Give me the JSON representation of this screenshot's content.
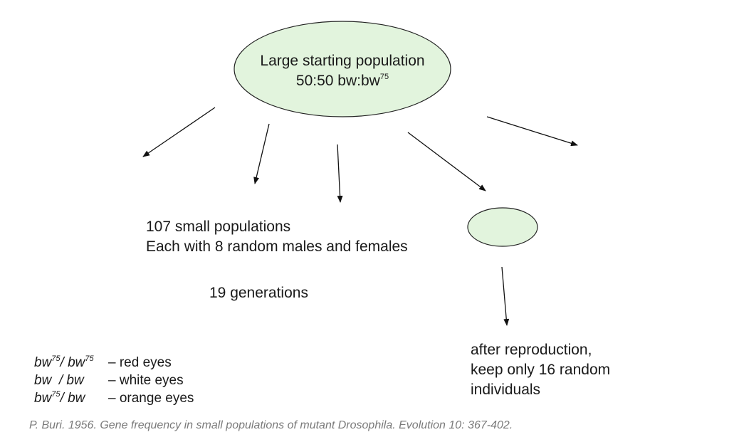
{
  "ellipse": {
    "line1": "Large starting population",
    "line2_prefix": "50:50 bw:bw",
    "line2_sup": "75",
    "fill": "#e2f4dd"
  },
  "small_population": {
    "fill": "#e2f4dd"
  },
  "labels": {
    "populations_line1": "107 small populations",
    "populations_line2": "Each with 8 random males and females",
    "generations": "19 generations",
    "reproduction_line1": "after reproduction,",
    "reproduction_line2": "keep only 16 random",
    "reproduction_line3": "individuals"
  },
  "legend": [
    {
      "geno_a": "bw",
      "sup_a": "75",
      "sep": "/ ",
      "geno_b": "bw",
      "sup_b": "75",
      "phenotype": "– red eyes"
    },
    {
      "geno_a": "bw",
      "sup_a": "",
      "sep": "  / ",
      "geno_b": "bw",
      "sup_b": "",
      "phenotype": "– white eyes"
    },
    {
      "geno_a": "bw",
      "sup_a": "75",
      "sep": "/ ",
      "geno_b": "bw",
      "sup_b": "",
      "phenotype": "– orange eyes"
    }
  ],
  "citation": "P. Buri.  1956.  Gene frequency in small populations of mutant Drosophila.  Evolution 10: 367-402."
}
